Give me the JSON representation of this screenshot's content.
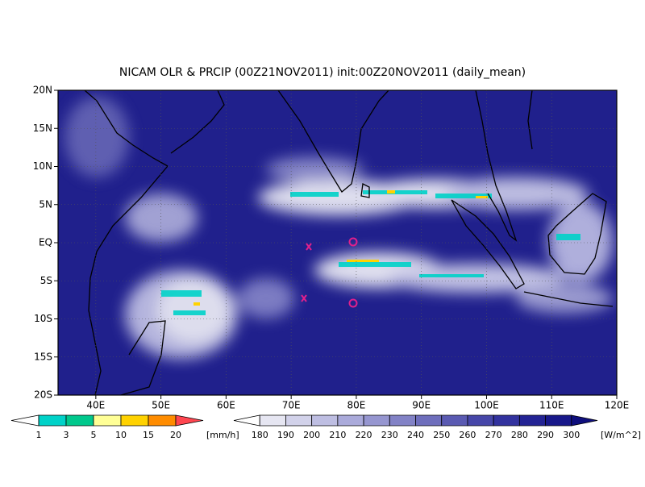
{
  "map": {
    "title": "NICAM OLR & PRCIP (00Z21NOV2011) init:00Z20NOV2011 (daily_mean)",
    "xlim": [
      34.2,
      120
    ],
    "ylim": [
      -20,
      20
    ],
    "xticks": [
      {
        "value": 40,
        "label": "40E"
      },
      {
        "value": 50,
        "label": "50E"
      },
      {
        "value": 60,
        "label": "60E"
      },
      {
        "value": 70,
        "label": "70E"
      },
      {
        "value": 80,
        "label": "80E"
      },
      {
        "value": 90,
        "label": "90E"
      },
      {
        "value": 100,
        "label": "100E"
      },
      {
        "value": 110,
        "label": "110E"
      },
      {
        "value": 120,
        "label": "120E"
      }
    ],
    "yticks": [
      {
        "value": -20,
        "label": "20S"
      },
      {
        "value": -15,
        "label": "15S"
      },
      {
        "value": -10,
        "label": "10S"
      },
      {
        "value": -5,
        "label": "5S"
      },
      {
        "value": 0,
        "label": "EQ"
      },
      {
        "value": 5,
        "label": "5N"
      },
      {
        "value": 10,
        "label": "10N"
      },
      {
        "value": 15,
        "label": "15N"
      },
      {
        "value": 20,
        "label": "20N"
      }
    ],
    "precip_colorbar": {
      "levels": [
        1,
        3,
        5,
        10,
        15,
        20
      ],
      "colors": [
        "#ffffff",
        "#00d2c8",
        "#00c88c",
        "#ffff96",
        "#ffd200",
        "#ff8c00",
        "#ff4650"
      ],
      "unit": "[mm/h]"
    },
    "olr_colorbar": {
      "levels": [
        180,
        190,
        200,
        210,
        220,
        230,
        240,
        250,
        260,
        270,
        280,
        290,
        300
      ],
      "colors": [
        "#ffffff",
        "#e6e6f2",
        "#d2d2ea",
        "#bebee2",
        "#aaaada",
        "#9696d0",
        "#8282c6",
        "#6e6ebc",
        "#5a5ab2",
        "#4646a8",
        "#32329e",
        "#232394",
        "#18188a",
        "#0f0f7d"
      ],
      "unit": "[W/m^2]"
    }
  }
}
